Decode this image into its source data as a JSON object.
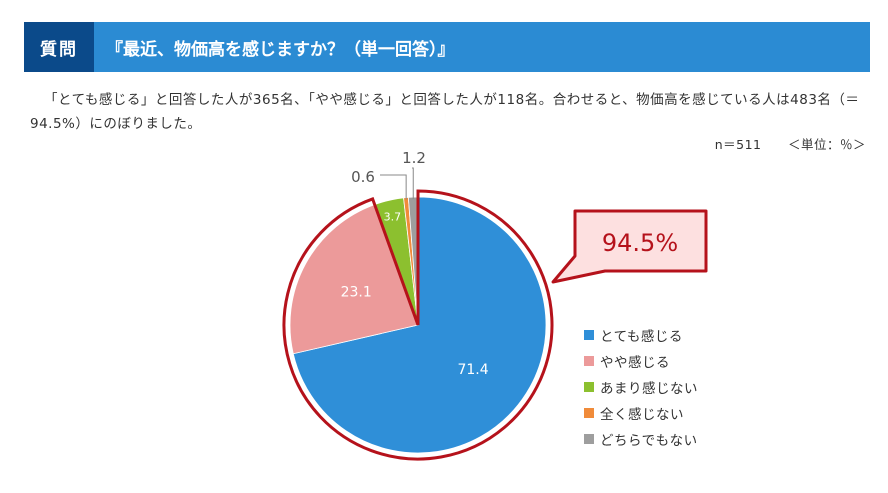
{
  "header": {
    "label": "質問",
    "title": "『最近、物価高を感じますか？（単一回答）』"
  },
  "summary": "「とても感じる」と回答した人が365名、「やや感じる」と回答した人が118名。合わせると、物価高を感じている人は483名（＝94.5%）にのぼりました。",
  "meta": {
    "n": "n＝511",
    "unit": "＜単位：％＞"
  },
  "callout": "94.5%",
  "chart_data": {
    "type": "pie",
    "title": "",
    "categories": [
      "とても感じる",
      "やや感じる",
      "あまり感じない",
      "全く感じない",
      "どちらでもない"
    ],
    "values": [
      71.4,
      23.1,
      3.7,
      0.6,
      1.2
    ],
    "labels": [
      "71.4",
      "23.1",
      "3.7",
      "0.6",
      "1.2"
    ],
    "colors": [
      "#2f8fd8",
      "#ec9a9a",
      "#8cc02f",
      "#f08b3a",
      "#9e9e9e"
    ],
    "legend_position": "right",
    "highlight_color": "#b5121b"
  }
}
